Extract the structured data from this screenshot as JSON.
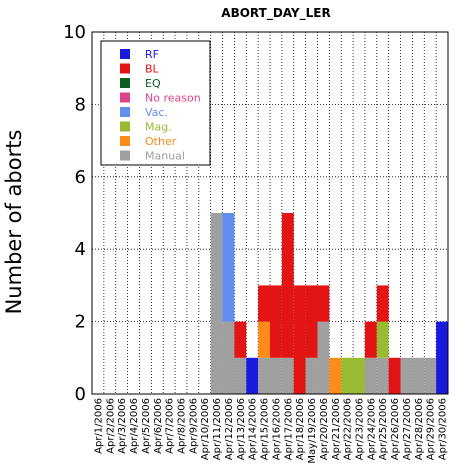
{
  "chart_data": {
    "type": "bar",
    "stacked": true,
    "title": "ABORT_DAY_LER",
    "ylabel": "Number of aborts",
    "xlabel": "",
    "ylim": [
      0,
      10
    ],
    "yticks": [
      0,
      2,
      4,
      6,
      8,
      10
    ],
    "grid": true,
    "legend_position": "top-left",
    "categories": [
      "Apr/1/2006",
      "Apr/2/2006",
      "Apr/3/2006",
      "Apr/4/2006",
      "Apr/5/2006",
      "Apr/6/2006",
      "Apr/7/2006",
      "Apr/8/2006",
      "Apr/9/2006",
      "Apr/10/2006",
      "Apr/11/2006",
      "Apr/12/2006",
      "Apr/13/2006",
      "Apr/14/2006",
      "Apr/15/2006",
      "Apr/16/2006",
      "Apr/17/2006",
      "Apr/18/2006",
      "May/19/2006",
      "Apr/20/2006",
      "Apr/21/2006",
      "Apr/22/2006",
      "Apr/23/2006",
      "Apr/24/2006",
      "Apr/25/2006",
      "Apr/26/2006",
      "Apr/27/2006",
      "Apr/28/2006",
      "Apr/29/2006",
      "Apr/30/2006"
    ],
    "series": [
      {
        "name": "Manual",
        "color": "#a0a0a0",
        "values": [
          0,
          0,
          0,
          0,
          0,
          0,
          0,
          0,
          0,
          0,
          5,
          2,
          1,
          0,
          1,
          1,
          1,
          0,
          1,
          2,
          0,
          0,
          0,
          1,
          1,
          0,
          1,
          1,
          1,
          0
        ]
      },
      {
        "name": "Other",
        "color": "#ff8c1a",
        "values": [
          0,
          0,
          0,
          0,
          0,
          0,
          0,
          0,
          0,
          0,
          0,
          0,
          0,
          0,
          1,
          0,
          0,
          0,
          0,
          0,
          1,
          0,
          0,
          0,
          0,
          0,
          0,
          0,
          0,
          0
        ]
      },
      {
        "name": "Mag.",
        "color": "#99bb33",
        "values": [
          0,
          0,
          0,
          0,
          0,
          0,
          0,
          0,
          0,
          0,
          0,
          0,
          0,
          0,
          0,
          0,
          0,
          0,
          0,
          0,
          0,
          1,
          1,
          0,
          1,
          0,
          0,
          0,
          0,
          0
        ]
      },
      {
        "name": "Vac.",
        "color": "#5f8fef",
        "values": [
          0,
          0,
          0,
          0,
          0,
          0,
          0,
          0,
          0,
          0,
          0,
          3,
          0,
          0,
          0,
          0,
          0,
          0,
          0,
          0,
          0,
          0,
          0,
          0,
          0,
          0,
          0,
          0,
          0,
          0
        ]
      },
      {
        "name": "No reason",
        "color": "#dd4488",
        "values": [
          0,
          0,
          0,
          0,
          0,
          0,
          0,
          0,
          0,
          0,
          0,
          0,
          0,
          0,
          0,
          0,
          0,
          0,
          0,
          0,
          0,
          0,
          0,
          0,
          0,
          0,
          0,
          0,
          0,
          0
        ]
      },
      {
        "name": "EQ",
        "color": "#0d5e22",
        "values": [
          0,
          0,
          0,
          0,
          0,
          0,
          0,
          0,
          0,
          0,
          0,
          0,
          0,
          0,
          0,
          0,
          0,
          0,
          0,
          0,
          0,
          0,
          0,
          0,
          0,
          0,
          0,
          0,
          0,
          0
        ]
      },
      {
        "name": "BL",
        "color": "#e21414",
        "values": [
          0,
          0,
          0,
          0,
          0,
          0,
          0,
          0,
          0,
          0,
          0,
          0,
          1,
          0,
          1,
          2,
          4,
          3,
          2,
          1,
          0,
          0,
          0,
          1,
          1,
          1,
          0,
          0,
          0,
          0
        ]
      },
      {
        "name": "RF",
        "color": "#1a1adc",
        "values": [
          0,
          0,
          0,
          0,
          0,
          0,
          0,
          0,
          0,
          0,
          0,
          0,
          0,
          1,
          0,
          0,
          0,
          0,
          0,
          0,
          0,
          0,
          0,
          0,
          0,
          0,
          0,
          0,
          0,
          2
        ]
      }
    ],
    "legend_order": [
      "RF",
      "BL",
      "EQ",
      "No reason",
      "Vac.",
      "Mag.",
      "Other",
      "Manual"
    ]
  }
}
